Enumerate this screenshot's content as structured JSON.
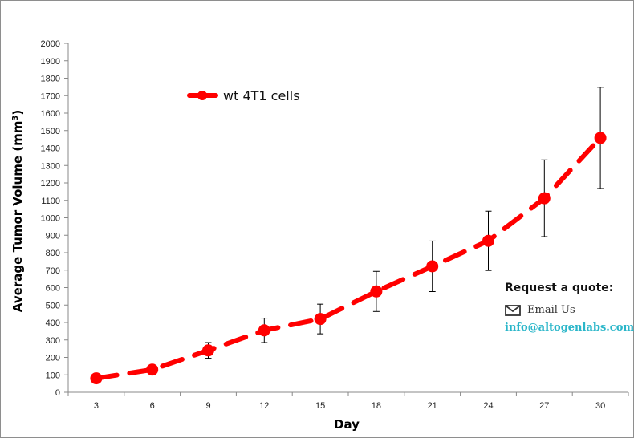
{
  "colors": {
    "series": "#ff0000",
    "text": "#000000",
    "link": "#2ab6c9"
  },
  "chart_data": {
    "type": "line",
    "x": [
      3,
      6,
      9,
      12,
      15,
      18,
      21,
      24,
      27,
      30
    ],
    "series": [
      {
        "name": "wt 4T1 cells",
        "values": [
          80,
          130,
          240,
          355,
          420,
          578,
          722,
          868,
          1112,
          1458
        ],
        "error": [
          20,
          25,
          45,
          70,
          85,
          115,
          145,
          170,
          220,
          290
        ]
      }
    ],
    "xlabel": "Day",
    "ylabel": "Average Tumor Volume (mm",
    "ylabel_superscript": "3",
    "ylabel_suffix": ")",
    "ylim": [
      0,
      2000
    ],
    "y_ticks": [
      0,
      100,
      200,
      300,
      400,
      500,
      600,
      700,
      800,
      900,
      1000,
      1100,
      1200,
      1300,
      1400,
      1500,
      1600,
      1700,
      1800,
      1900,
      2000
    ],
    "grid": false,
    "line_style": "dashed",
    "marker": "circle",
    "legend_position": "top-left"
  },
  "quote": {
    "title": "Request a quote:",
    "email_label": "Email Us",
    "email_address": "info@altogenlabs.com",
    "icon": "envelope-icon"
  }
}
